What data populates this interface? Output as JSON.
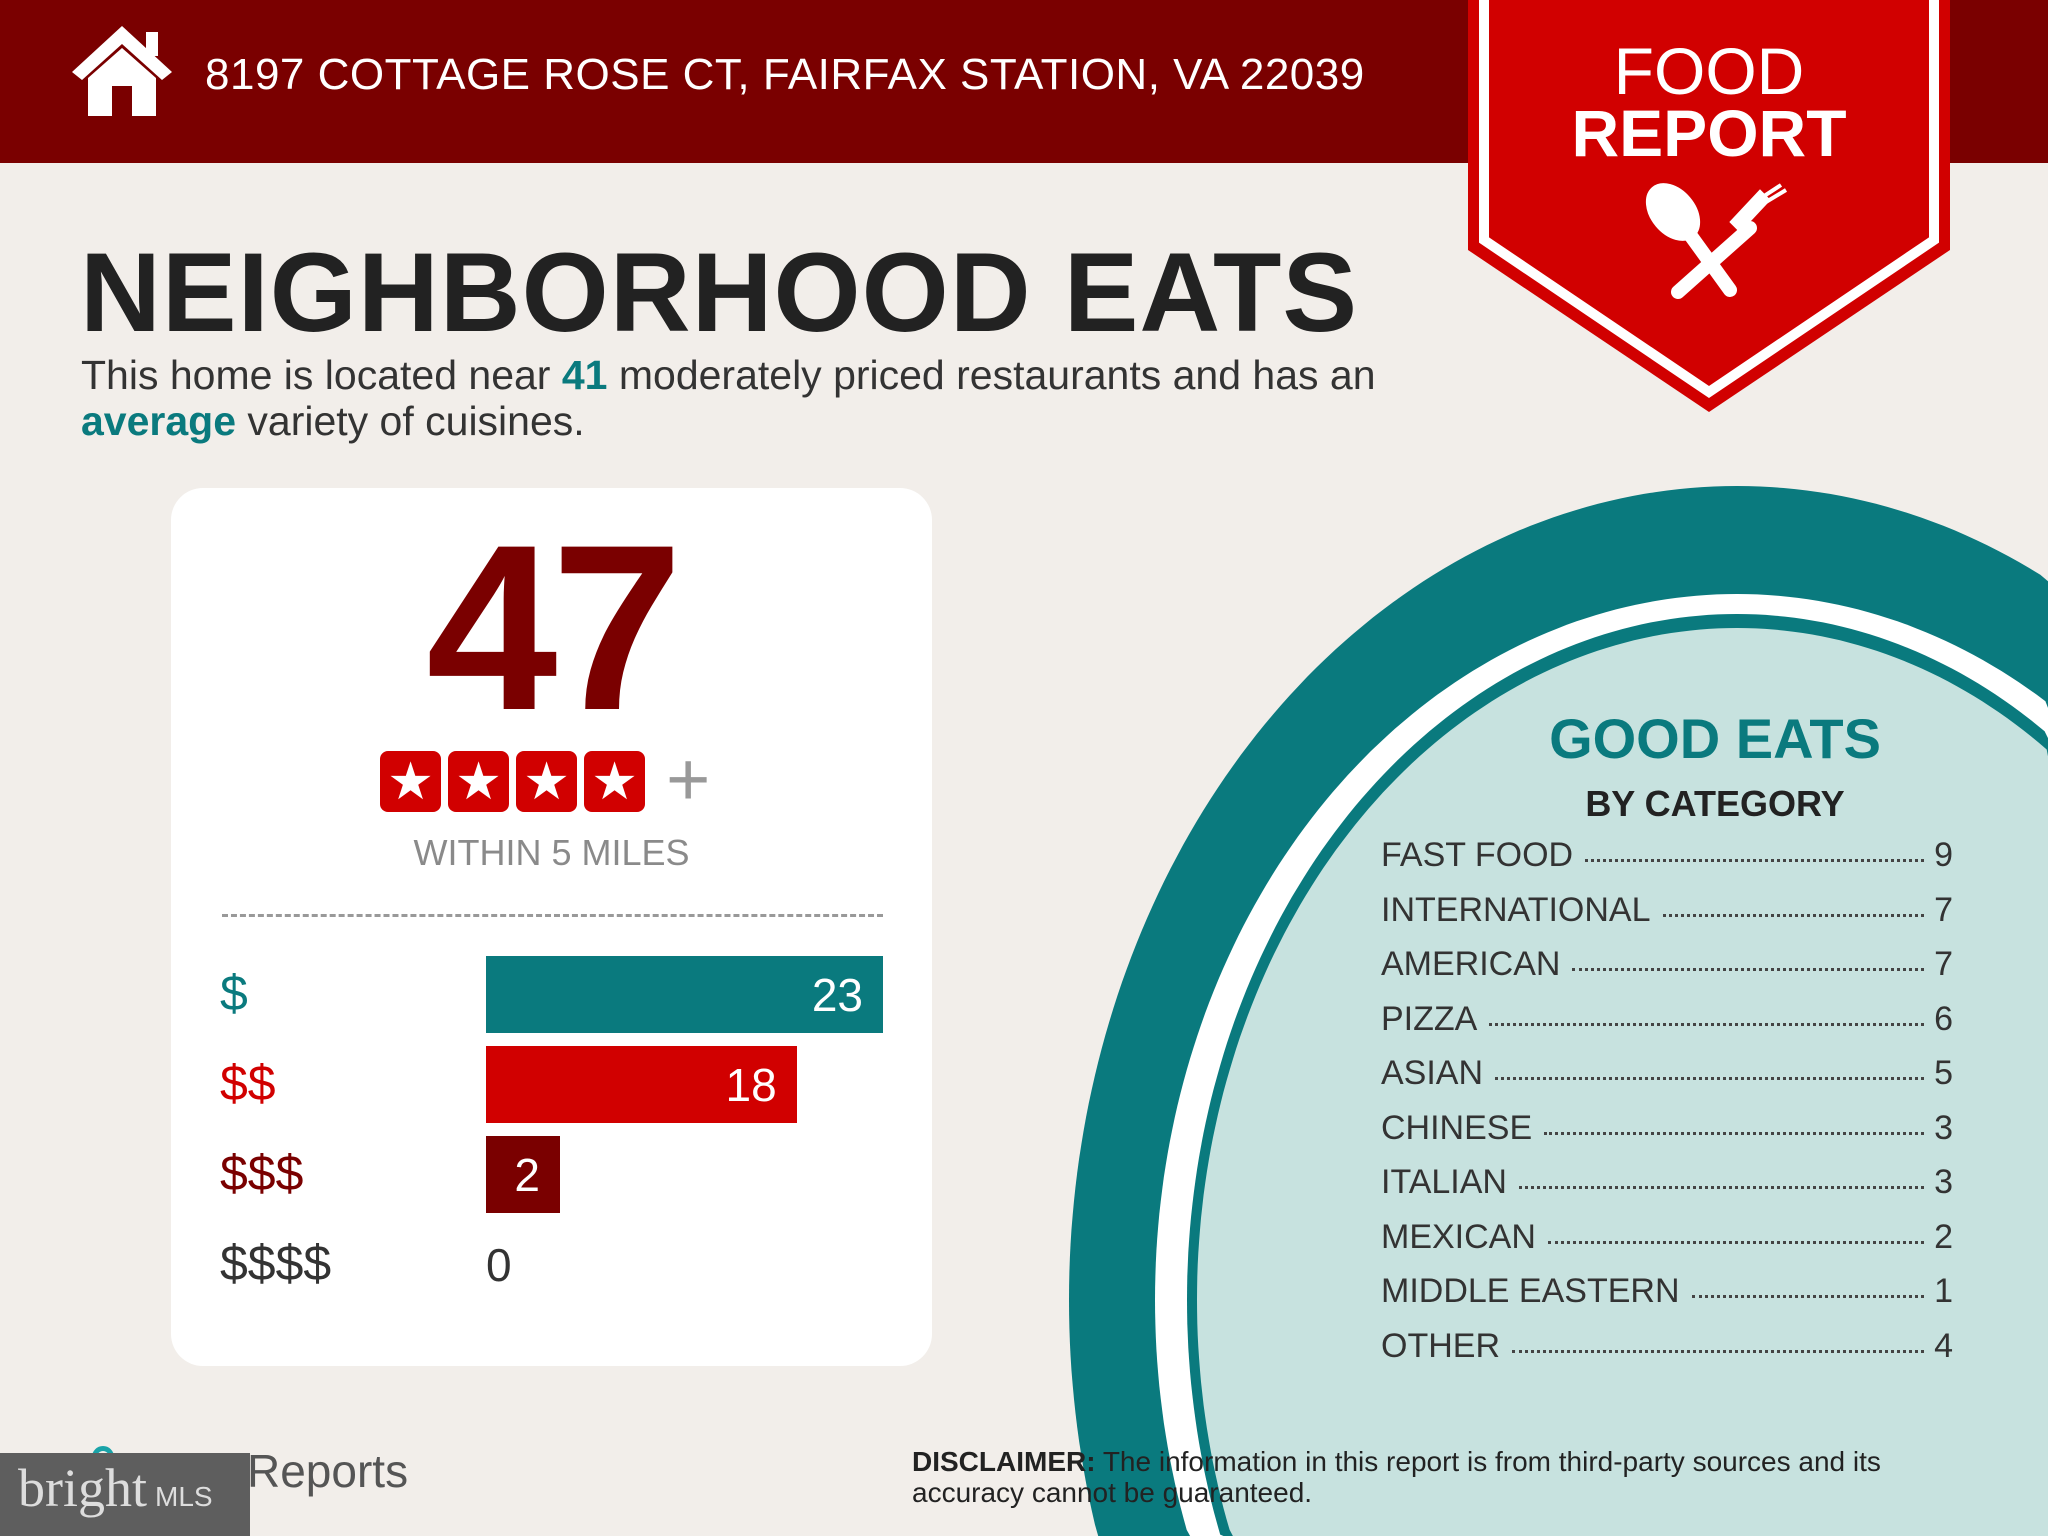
{
  "header": {
    "address": "8197 COTTAGE ROSE CT, FAIRFAX STATION, VA 22039",
    "home_icon": "house-icon"
  },
  "badge": {
    "line1": "FOOD",
    "line2": "REPORT",
    "icon": "spoon-fork-icon"
  },
  "title": "NEIGHBORHOOD EATS",
  "subtitle": {
    "p1": "This home is located near ",
    "count": "41",
    "p2": " moderately priced restaurants and has an ",
    "variety": "average",
    "p3": " variety of cuisines."
  },
  "card": {
    "total": "47",
    "stars": 4,
    "plus": "+",
    "within": "WITHIN 5 MILES",
    "price_tiers": [
      {
        "label": "$",
        "value": 23,
        "color": "#0a7a7e"
      },
      {
        "label": "$$",
        "value": 18,
        "color": "#d10000"
      },
      {
        "label": "$$$",
        "value": 2,
        "color": "#7a0000"
      },
      {
        "label": "$$$$",
        "value": 0,
        "color": "#333333"
      }
    ]
  },
  "good_eats": {
    "title": "GOOD EATS",
    "subtitle": "BY CATEGORY",
    "items": [
      {
        "name": "FAST FOOD",
        "count": "9"
      },
      {
        "name": "INTERNATIONAL",
        "count": "7"
      },
      {
        "name": "AMERICAN",
        "count": "7"
      },
      {
        "name": "PIZZA",
        "count": "6"
      },
      {
        "name": "ASIAN",
        "count": "5"
      },
      {
        "name": "CHINESE",
        "count": "3"
      },
      {
        "name": "ITALIAN",
        "count": "3"
      },
      {
        "name": "MEXICAN",
        "count": "2"
      },
      {
        "name": "MIDDLE EASTERN",
        "count": "1"
      },
      {
        "name": "OTHER",
        "count": "4"
      }
    ]
  },
  "disclaimer": {
    "label": "DISCLAIMER:",
    "text": " The information in this report is from third-party sources and its accuracy cannot be guaranteed."
  },
  "footer": {
    "reports": "Reports",
    "watermark": "bright MLS"
  },
  "colors": {
    "header": "#7a0000",
    "badge": "#d10000",
    "teal": "#0a7a7e",
    "light_teal": "#c7e2df",
    "background": "#f2eeea"
  }
}
